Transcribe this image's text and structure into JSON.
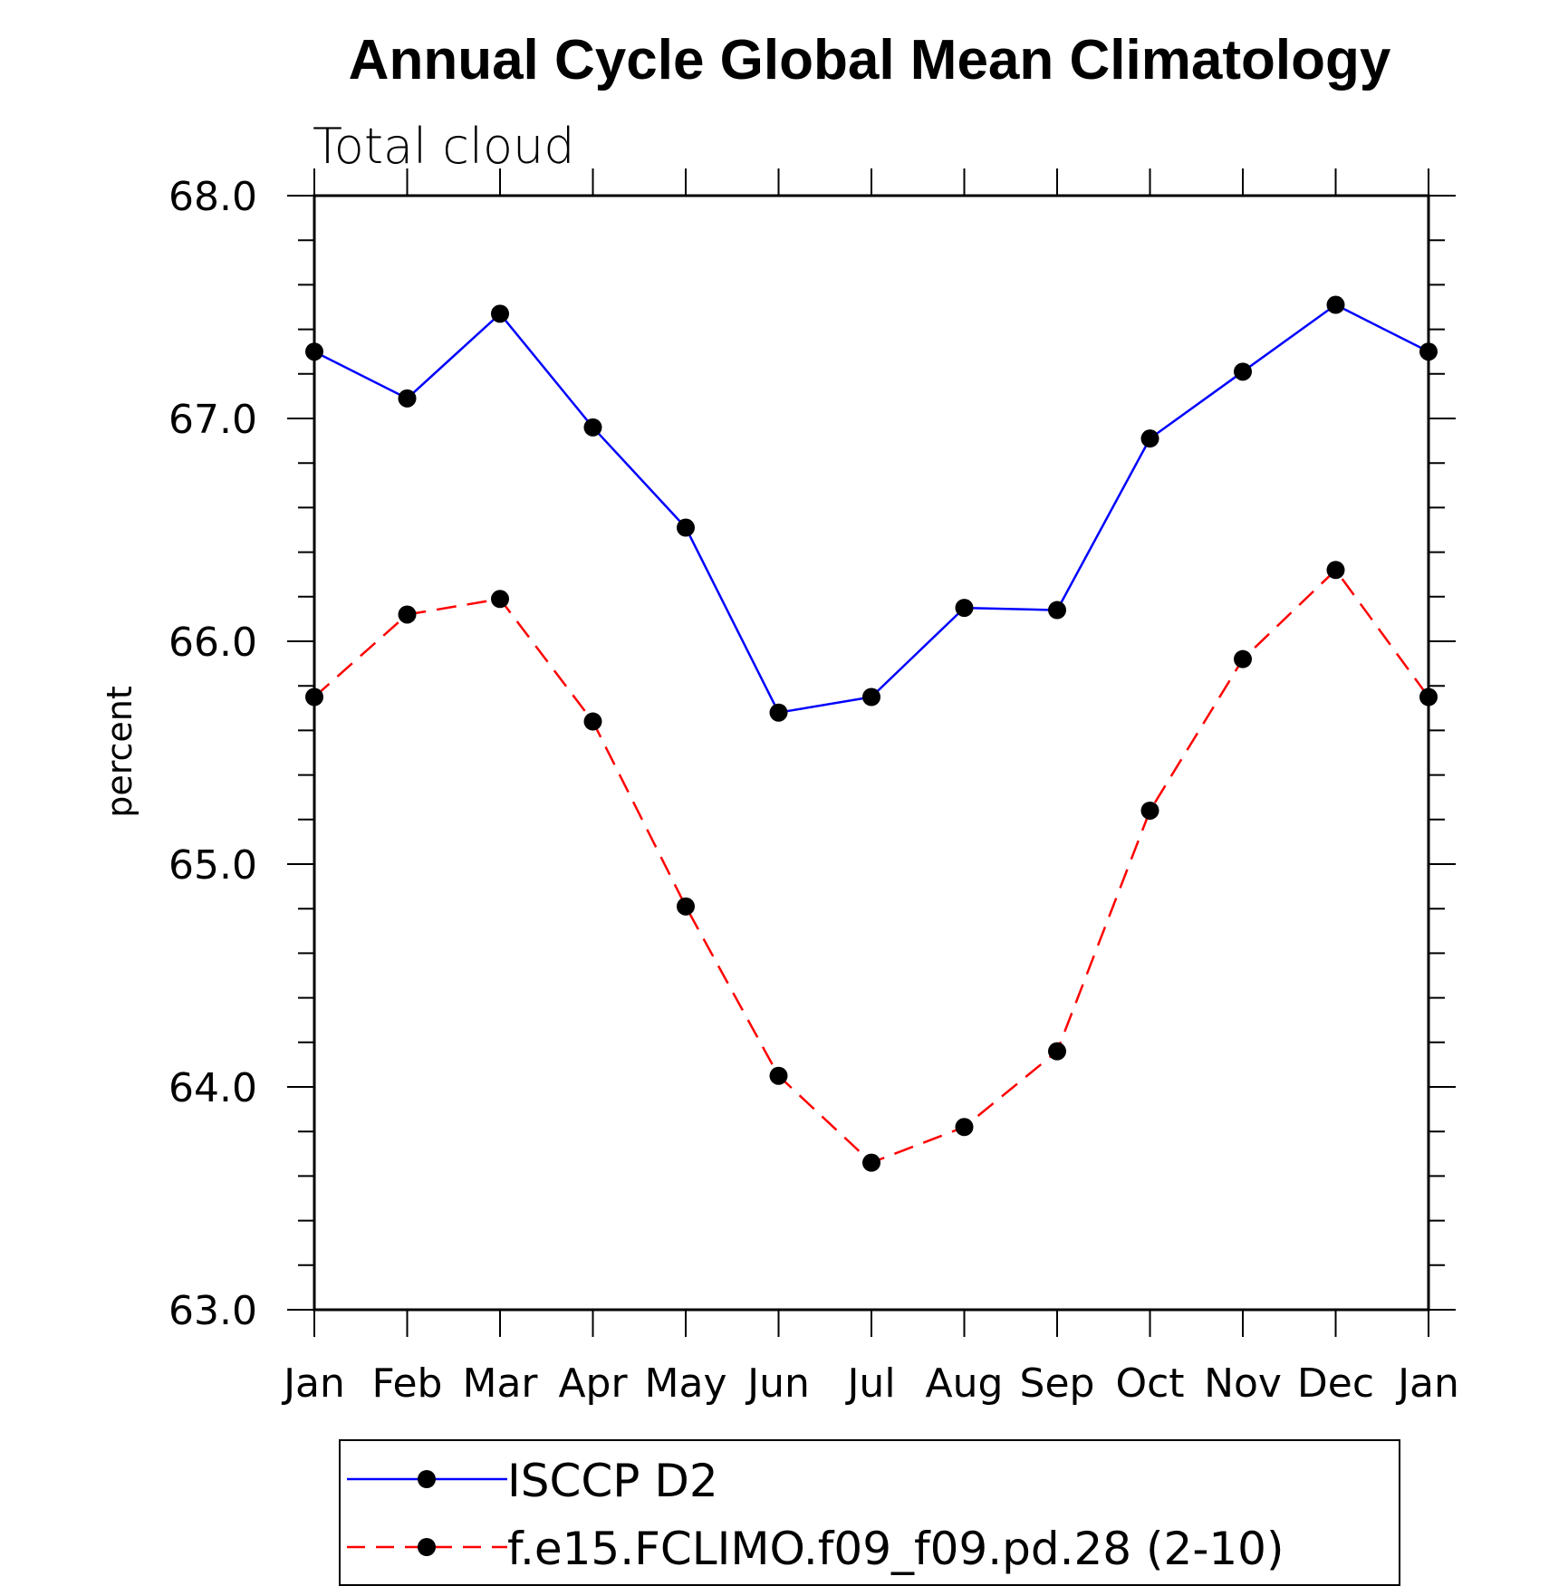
{
  "chart_data": {
    "type": "line",
    "title": "Annual Cycle Global Mean Climatology",
    "subtitle": "Total cloud",
    "xlabel": "",
    "ylabel": "percent",
    "categories": [
      "Jan",
      "Feb",
      "Mar",
      "Apr",
      "May",
      "Jun",
      "Jul",
      "Aug",
      "Sep",
      "Oct",
      "Nov",
      "Dec",
      "Jan"
    ],
    "ylim": [
      63.0,
      68.0
    ],
    "yticks": [
      "63.0",
      "64.0",
      "65.0",
      "66.0",
      "67.0",
      "68.0"
    ],
    "grid": false,
    "legend_position": "bottom",
    "series": [
      {
        "name": "ISCCP D2",
        "color": "#0000ff",
        "line_style": "solid",
        "marker": "filled-circle",
        "values": [
          67.3,
          67.09,
          67.47,
          66.96,
          66.51,
          65.68,
          65.75,
          66.15,
          66.14,
          66.91,
          67.21,
          67.51,
          67.3
        ]
      },
      {
        "name": "f.e15.FCLIMO.f09_f09.pd.28 (2-10)",
        "color": "#ff0000",
        "line_style": "dashed",
        "marker": "filled-circle",
        "values": [
          65.75,
          66.12,
          66.19,
          65.64,
          64.81,
          64.05,
          63.66,
          63.82,
          64.16,
          65.24,
          65.92,
          66.32,
          65.75
        ]
      }
    ]
  }
}
